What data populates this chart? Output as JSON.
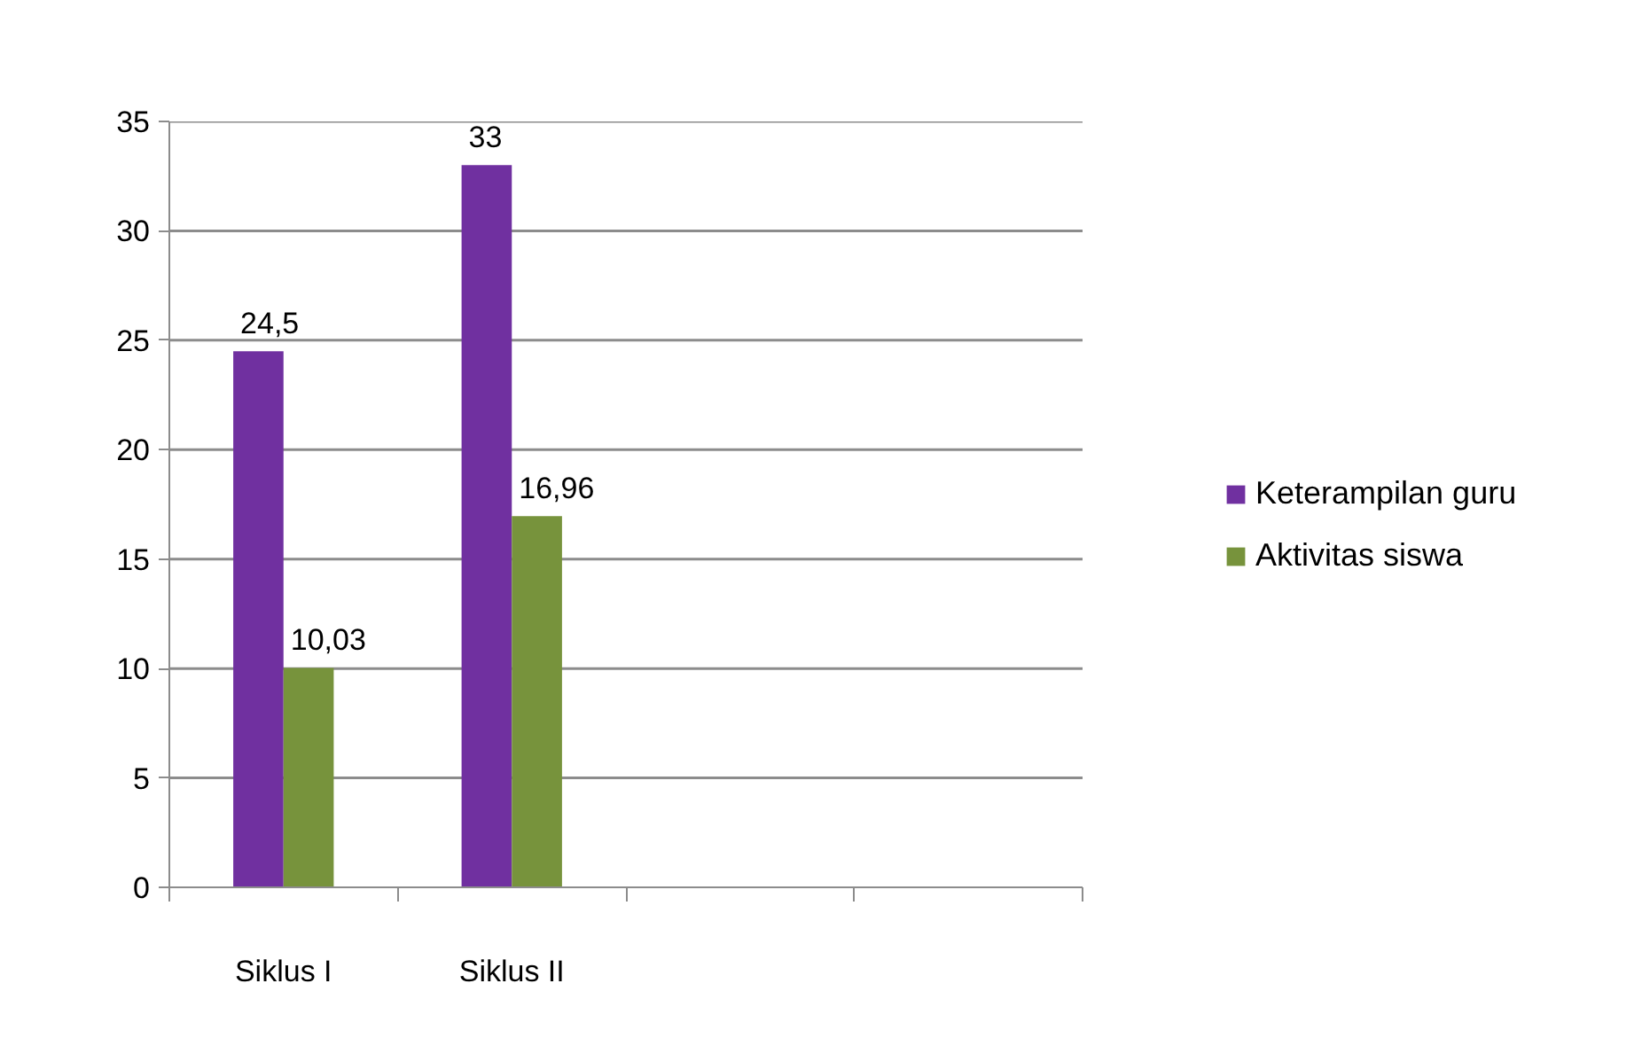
{
  "chart_data": {
    "type": "bar",
    "categories": [
      "Siklus I",
      "Siklus II",
      null,
      null
    ],
    "series": [
      {
        "name": "Keterampilan guru",
        "color": "#7030a0",
        "values": [
          24.5,
          33,
          null,
          null
        ],
        "value_labels": [
          "24,5",
          "33",
          null,
          null
        ]
      },
      {
        "name": "Aktivitas siswa",
        "color": "#77933c",
        "values": [
          10.03,
          16.96,
          null,
          null
        ],
        "value_labels": [
          "10,03",
          "16,96",
          null,
          null
        ]
      }
    ],
    "ylim": [
      0,
      35
    ],
    "yticks": [
      0,
      5,
      10,
      15,
      20,
      25,
      30,
      35
    ],
    "grid": "y",
    "legend": "right"
  }
}
